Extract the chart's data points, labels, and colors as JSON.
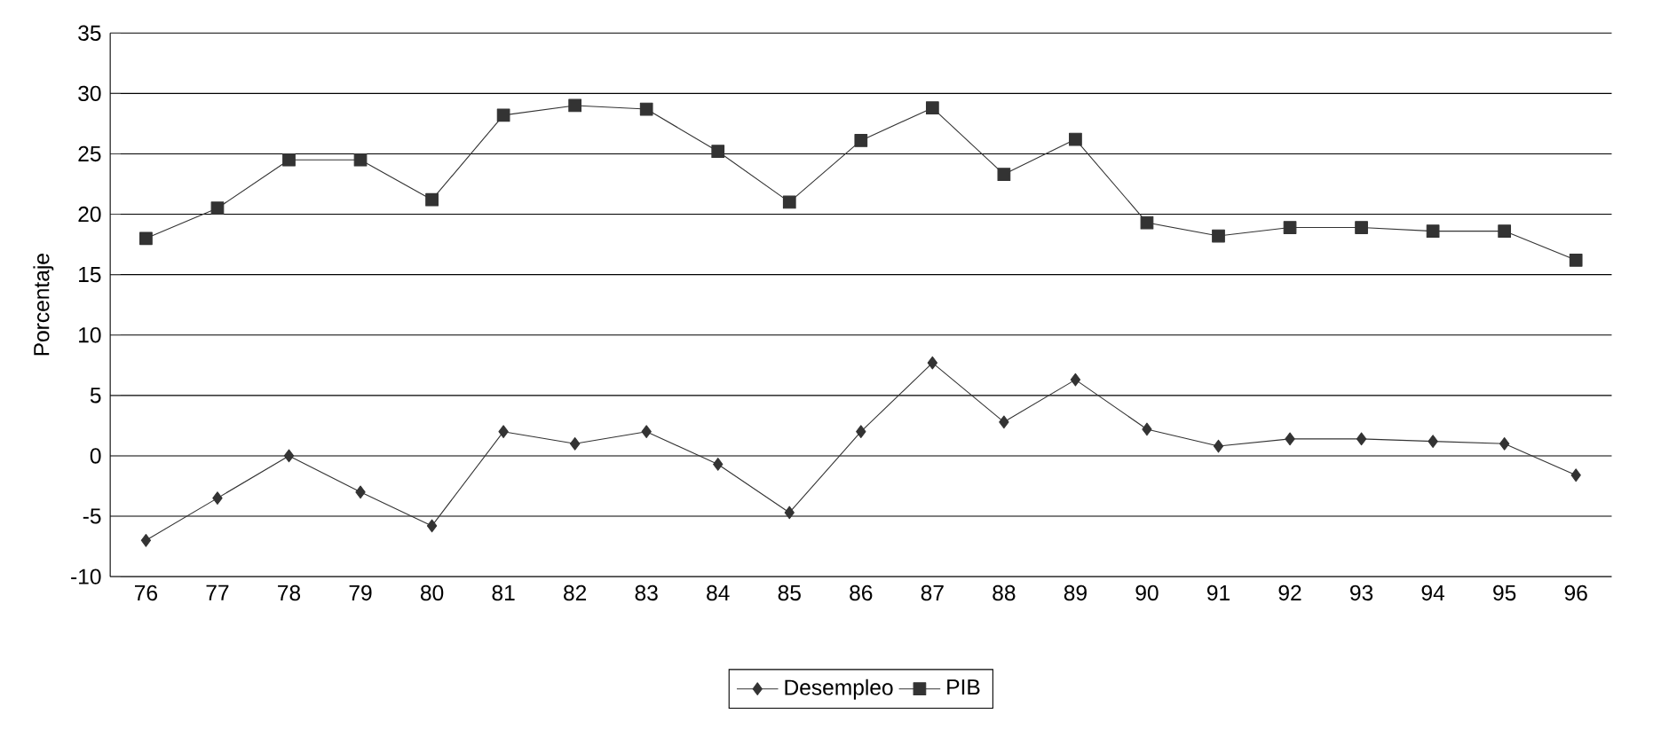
{
  "chart_data": {
    "type": "line",
    "ylabel": "Porcentaje",
    "categories": [
      "76",
      "77",
      "78",
      "79",
      "80",
      "81",
      "82",
      "83",
      "84",
      "85",
      "86",
      "87",
      "88",
      "89",
      "90",
      "91",
      "92",
      "93",
      "94",
      "95",
      "96"
    ],
    "series": [
      {
        "name": "Desempleo",
        "color": "#333333",
        "marker": "diamond",
        "values": [
          -7,
          -3.5,
          0,
          -3,
          -5.8,
          2,
          1,
          2,
          -0.7,
          -4.7,
          2,
          7.7,
          2.8,
          6.3,
          2.2,
          0.8,
          1.4,
          1.4,
          1.2,
          1,
          -1.6
        ]
      },
      {
        "name": "PIB",
        "color": "#333333",
        "marker": "square",
        "values": [
          18,
          20.5,
          24.5,
          24.5,
          21.2,
          28.2,
          29,
          28.7,
          25.2,
          21,
          26.1,
          28.8,
          23.3,
          26.2,
          19.3,
          18.2,
          18.9,
          18.9,
          18.6,
          18.6,
          16.2
        ]
      }
    ],
    "ylim": [
      -10,
      35
    ],
    "yticks": [
      -10,
      -5,
      0,
      5,
      10,
      15,
      20,
      25,
      30,
      35
    ],
    "grid": "y",
    "legend": "bottom",
    "line_style": "solid"
  }
}
